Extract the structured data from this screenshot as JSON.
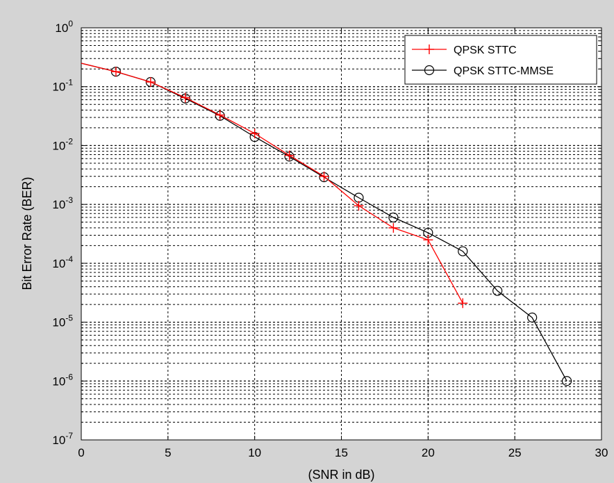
{
  "chart_data": {
    "type": "line",
    "title": "",
    "xlabel": "(SNR in dB)",
    "ylabel": "Bit Error Rate (BER)",
    "xlim": [
      0,
      30
    ],
    "ylim": [
      1e-07,
      1
    ],
    "yscale": "log",
    "grid": true,
    "legend_position": "top-right",
    "x_ticks": [
      0,
      5,
      10,
      15,
      20,
      25,
      30
    ],
    "y_tick_exponents": [
      0,
      -1,
      -2,
      -3,
      -4,
      -5,
      -6,
      -7
    ],
    "y_tick_base": "10",
    "series": [
      {
        "name": "QPSK STTC",
        "color": "#ff0000",
        "marker": "plus",
        "x": [
          0,
          2,
          4,
          6,
          8,
          10,
          12,
          14,
          16,
          18,
          20,
          22
        ],
        "y": [
          0.25,
          0.18,
          0.12,
          0.065,
          0.033,
          0.016,
          0.0068,
          0.003,
          0.00095,
          0.0004,
          0.00025,
          2.1e-05
        ]
      },
      {
        "name": "QPSK STTC-MMSE",
        "color": "#000000",
        "marker": "circle",
        "x": [
          0,
          2,
          4,
          6,
          8,
          10,
          12,
          14,
          16,
          18,
          20,
          22,
          24,
          26,
          28
        ],
        "y": [
          0.25,
          0.18,
          0.12,
          0.063,
          0.032,
          0.014,
          0.0065,
          0.0029,
          0.0013,
          0.0006,
          0.00033,
          0.00016,
          3.4e-05,
          1.2e-05,
          1e-06
        ]
      }
    ]
  }
}
